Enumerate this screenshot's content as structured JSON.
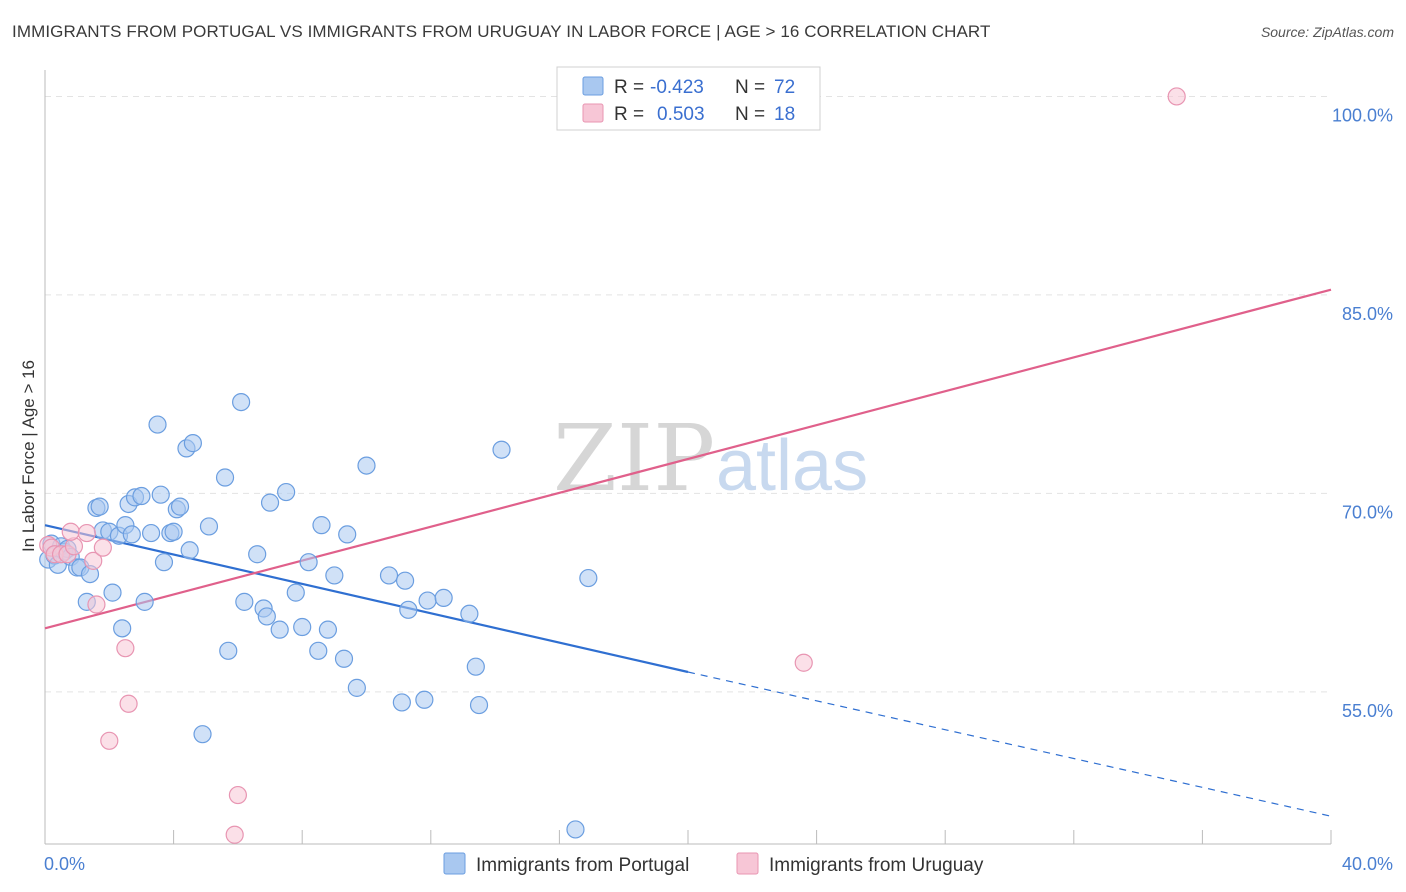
{
  "header": {
    "title": "IMMIGRANTS FROM PORTUGAL VS IMMIGRANTS FROM URUGUAY IN LABOR FORCE | AGE > 16 CORRELATION CHART",
    "source": "Source: ZipAtlas.com"
  },
  "watermark": {
    "zip": "ZIP",
    "atlas": "atlas"
  },
  "colors": {
    "portugal_fill": "#a9c8f0",
    "portugal_stroke": "#6b9ee0",
    "portugal_line": "#2f6fd1",
    "uruguay_fill": "#f7c6d6",
    "uruguay_stroke": "#e895b2",
    "uruguay_line": "#e0608b",
    "axis_text": "#4a7fd1",
    "grid": "#e3e3e3"
  },
  "stats_legend": {
    "rows": [
      {
        "r_label": "R =",
        "r_value": "-0.423",
        "n_label": "N =",
        "n_value": "72",
        "series": "portugal"
      },
      {
        "r_label": "R =",
        "r_value": "0.503",
        "n_label": "N =",
        "n_value": "18",
        "series": "uruguay"
      }
    ]
  },
  "chart_data": {
    "type": "scatter",
    "title": "IMMIGRANTS FROM PORTUGAL VS IMMIGRANTS FROM URUGUAY IN LABOR FORCE | AGE > 16 CORRELATION CHART",
    "xlabel": "",
    "ylabel": "In Labor Force | Age > 16",
    "xlim": [
      0,
      40
    ],
    "ylim": [
      43.5,
      102
    ],
    "x_tick_labels": [
      "0.0%",
      "40.0%"
    ],
    "y_ticks": [
      55,
      70,
      85,
      100
    ],
    "y_tick_labels": [
      "55.0%",
      "70.0%",
      "85.0%",
      "100.0%"
    ],
    "x_minor_ticks": [
      0,
      4,
      8,
      12,
      16,
      20,
      24,
      28,
      32,
      36,
      40
    ],
    "grid": true,
    "legend_position": "bottom-center",
    "series": [
      {
        "name": "Immigrants from Portugal",
        "key": "portugal",
        "r": -0.423,
        "n": 72,
        "trend": {
          "x0": 0,
          "y0": 67.6,
          "x1": 20.0,
          "y1": 56.5,
          "dashed_to_x": 40,
          "dashed_to_y": 45.6
        },
        "points": [
          [
            0.1,
            65.0
          ],
          [
            0.2,
            66.2
          ],
          [
            0.3,
            65.3
          ],
          [
            0.4,
            64.6
          ],
          [
            0.5,
            66.0
          ],
          [
            0.6,
            65.6
          ],
          [
            0.7,
            65.8
          ],
          [
            0.8,
            65.2
          ],
          [
            1.0,
            64.4
          ],
          [
            1.1,
            64.4
          ],
          [
            1.3,
            61.8
          ],
          [
            1.4,
            63.9
          ],
          [
            1.6,
            68.9
          ],
          [
            1.7,
            69.0
          ],
          [
            1.8,
            67.2
          ],
          [
            2.0,
            67.1
          ],
          [
            2.1,
            62.5
          ],
          [
            2.3,
            66.8
          ],
          [
            2.4,
            59.8
          ],
          [
            2.5,
            67.6
          ],
          [
            2.6,
            69.2
          ],
          [
            2.7,
            66.9
          ],
          [
            2.8,
            69.7
          ],
          [
            3.0,
            69.8
          ],
          [
            3.1,
            61.8
          ],
          [
            3.3,
            67.0
          ],
          [
            3.5,
            75.2
          ],
          [
            3.6,
            69.9
          ],
          [
            3.7,
            64.8
          ],
          [
            3.9,
            67.0
          ],
          [
            4.0,
            67.1
          ],
          [
            4.1,
            68.8
          ],
          [
            4.2,
            69.0
          ],
          [
            4.4,
            73.4
          ],
          [
            4.5,
            65.7
          ],
          [
            4.6,
            73.8
          ],
          [
            4.9,
            51.8
          ],
          [
            5.1,
            67.5
          ],
          [
            5.6,
            71.2
          ],
          [
            5.7,
            58.1
          ],
          [
            6.1,
            76.9
          ],
          [
            6.2,
            61.8
          ],
          [
            6.6,
            65.4
          ],
          [
            6.8,
            61.3
          ],
          [
            6.9,
            60.7
          ],
          [
            7.0,
            69.3
          ],
          [
            7.3,
            59.7
          ],
          [
            7.5,
            70.1
          ],
          [
            7.8,
            62.5
          ],
          [
            8.0,
            59.9
          ],
          [
            8.2,
            64.8
          ],
          [
            8.5,
            58.1
          ],
          [
            8.6,
            67.6
          ],
          [
            8.8,
            59.7
          ],
          [
            9.0,
            63.8
          ],
          [
            9.3,
            57.5
          ],
          [
            9.4,
            66.9
          ],
          [
            9.7,
            55.3
          ],
          [
            10.0,
            72.1
          ],
          [
            10.7,
            63.8
          ],
          [
            11.1,
            54.2
          ],
          [
            11.2,
            63.4
          ],
          [
            11.3,
            61.2
          ],
          [
            11.8,
            54.4
          ],
          [
            11.9,
            61.9
          ],
          [
            12.4,
            62.1
          ],
          [
            13.2,
            60.9
          ],
          [
            13.4,
            56.9
          ],
          [
            13.5,
            54.0
          ],
          [
            14.2,
            73.3
          ],
          [
            16.5,
            44.6
          ],
          [
            16.9,
            63.6
          ]
        ]
      },
      {
        "name": "Immigrants from Uruguay",
        "key": "uruguay",
        "r": 0.503,
        "n": 18,
        "trend": {
          "x0": 0,
          "y0": 59.8,
          "x1": 40,
          "y1": 85.4
        },
        "points": [
          [
            0.1,
            66.1
          ],
          [
            0.2,
            65.9
          ],
          [
            0.3,
            65.4
          ],
          [
            0.5,
            65.4
          ],
          [
            0.7,
            65.4
          ],
          [
            0.9,
            66.0
          ],
          [
            0.8,
            67.1
          ],
          [
            1.3,
            67.0
          ],
          [
            1.5,
            64.9
          ],
          [
            1.6,
            61.6
          ],
          [
            1.8,
            65.9
          ],
          [
            2.0,
            51.3
          ],
          [
            2.5,
            58.3
          ],
          [
            2.6,
            54.1
          ],
          [
            6.0,
            47.2
          ],
          [
            5.9,
            44.2
          ],
          [
            23.6,
            57.2
          ],
          [
            35.2,
            100.0
          ]
        ]
      }
    ]
  },
  "bottom_legend": {
    "portugal_label": "Immigrants from Portugal",
    "uruguay_label": "Immigrants from Uruguay"
  }
}
